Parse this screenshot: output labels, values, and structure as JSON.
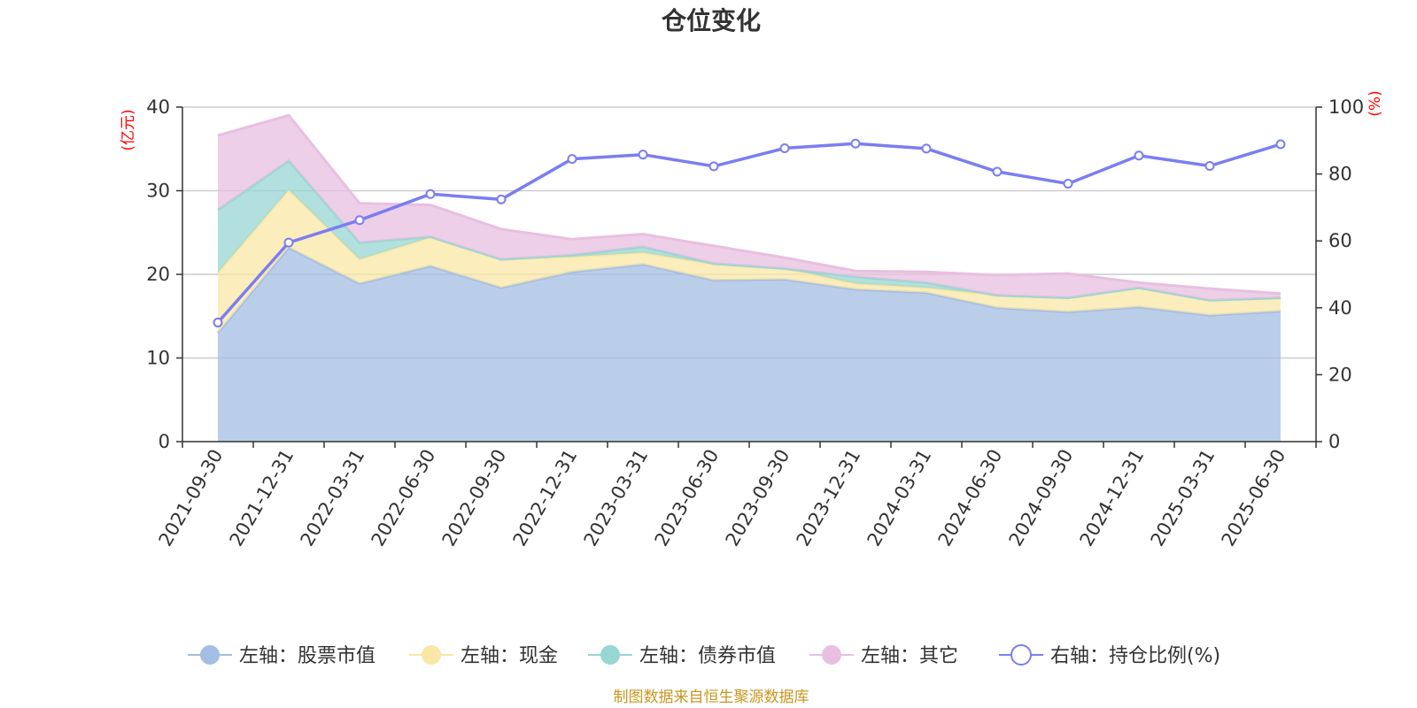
{
  "chart_data": {
    "type": "area",
    "title": "仓位变化",
    "left_unit": "(亿元)",
    "right_unit": "(%)",
    "categories": [
      "2021-09-30",
      "2021-12-31",
      "2022-03-31",
      "2022-06-30",
      "2022-09-30",
      "2022-12-31",
      "2023-03-31",
      "2023-06-30",
      "2023-09-30",
      "2023-12-31",
      "2024-03-31",
      "2024-06-30",
      "2024-09-30",
      "2024-12-31",
      "2025-03-31",
      "2025-06-30"
    ],
    "left_axis": {
      "min": 0,
      "max": 40,
      "ticks": [
        "0",
        "10",
        "20",
        "30",
        "40"
      ]
    },
    "right_axis": {
      "min": 0,
      "max": 100,
      "ticks": [
        "0",
        "20",
        "40",
        "60",
        "80",
        "100"
      ]
    },
    "stacked": true,
    "series": [
      {
        "name": "左轴：股票市值",
        "axis": "left",
        "kind": "area",
        "color": "#a3bde3",
        "values": [
          13.0,
          23.2,
          18.9,
          21.0,
          18.4,
          20.3,
          21.2,
          19.3,
          19.4,
          18.2,
          17.8,
          16.0,
          15.5,
          16.1,
          15.1,
          15.6
        ]
      },
      {
        "name": "左轴：现金",
        "axis": "left",
        "kind": "area",
        "color": "#f9e7a6",
        "values": [
          7.2,
          6.9,
          2.9,
          3.4,
          3.4,
          1.8,
          1.4,
          1.9,
          1.3,
          0.7,
          0.6,
          1.5,
          1.7,
          2.3,
          1.8,
          1.6
        ]
      },
      {
        "name": "左轴：债券市值",
        "axis": "left",
        "kind": "area",
        "color": "#97d6d3",
        "values": [
          7.5,
          3.5,
          2.0,
          0.1,
          0,
          0.2,
          0.7,
          0.1,
          0,
          0.8,
          0.6,
          0,
          0,
          0,
          0,
          0
        ]
      },
      {
        "name": "左轴：其它",
        "axis": "left",
        "kind": "area",
        "color": "#e8bfe0",
        "values": [
          8.9,
          5.4,
          4.7,
          3.8,
          3.6,
          1.9,
          1.5,
          2.1,
          1.3,
          0.7,
          1.3,
          2.4,
          2.9,
          0.6,
          1.4,
          0.5
        ]
      },
      {
        "name": "右轴：持仓比例(%)",
        "axis": "right",
        "kind": "line",
        "color": "#7b7ef0",
        "values": [
          35.6,
          59.5,
          66.2,
          74.0,
          72.4,
          84.5,
          85.8,
          82.3,
          87.7,
          89.1,
          87.6,
          80.7,
          77.1,
          85.5,
          82.4,
          88.9
        ]
      }
    ],
    "grid": true,
    "legend_position": "bottom"
  },
  "source": "制图数据来自恒生聚源数据库"
}
